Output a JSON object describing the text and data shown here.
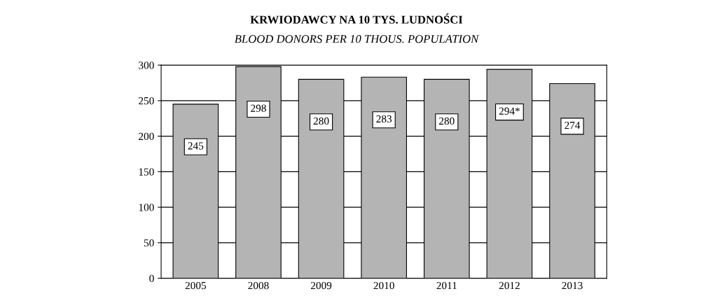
{
  "chart_data": {
    "type": "bar",
    "title": "KRWIODAWCY NA 10 TYS. LUDNOŚCI",
    "subtitle": "BLOOD DONORS PER 10 THOUS. POPULATION",
    "categories": [
      "2005",
      "2008",
      "2009",
      "2010",
      "2011",
      "2012",
      "2013"
    ],
    "values": [
      245,
      298,
      280,
      283,
      280,
      294,
      274
    ],
    "value_labels": [
      "245",
      "298",
      "280",
      "283",
      "280",
      "294*",
      "274"
    ],
    "color": "#b4b4b4",
    "ylim": [
      0,
      300
    ],
    "yticks": [
      0,
      50,
      100,
      150,
      200,
      250,
      300
    ],
    "grid": "y"
  }
}
